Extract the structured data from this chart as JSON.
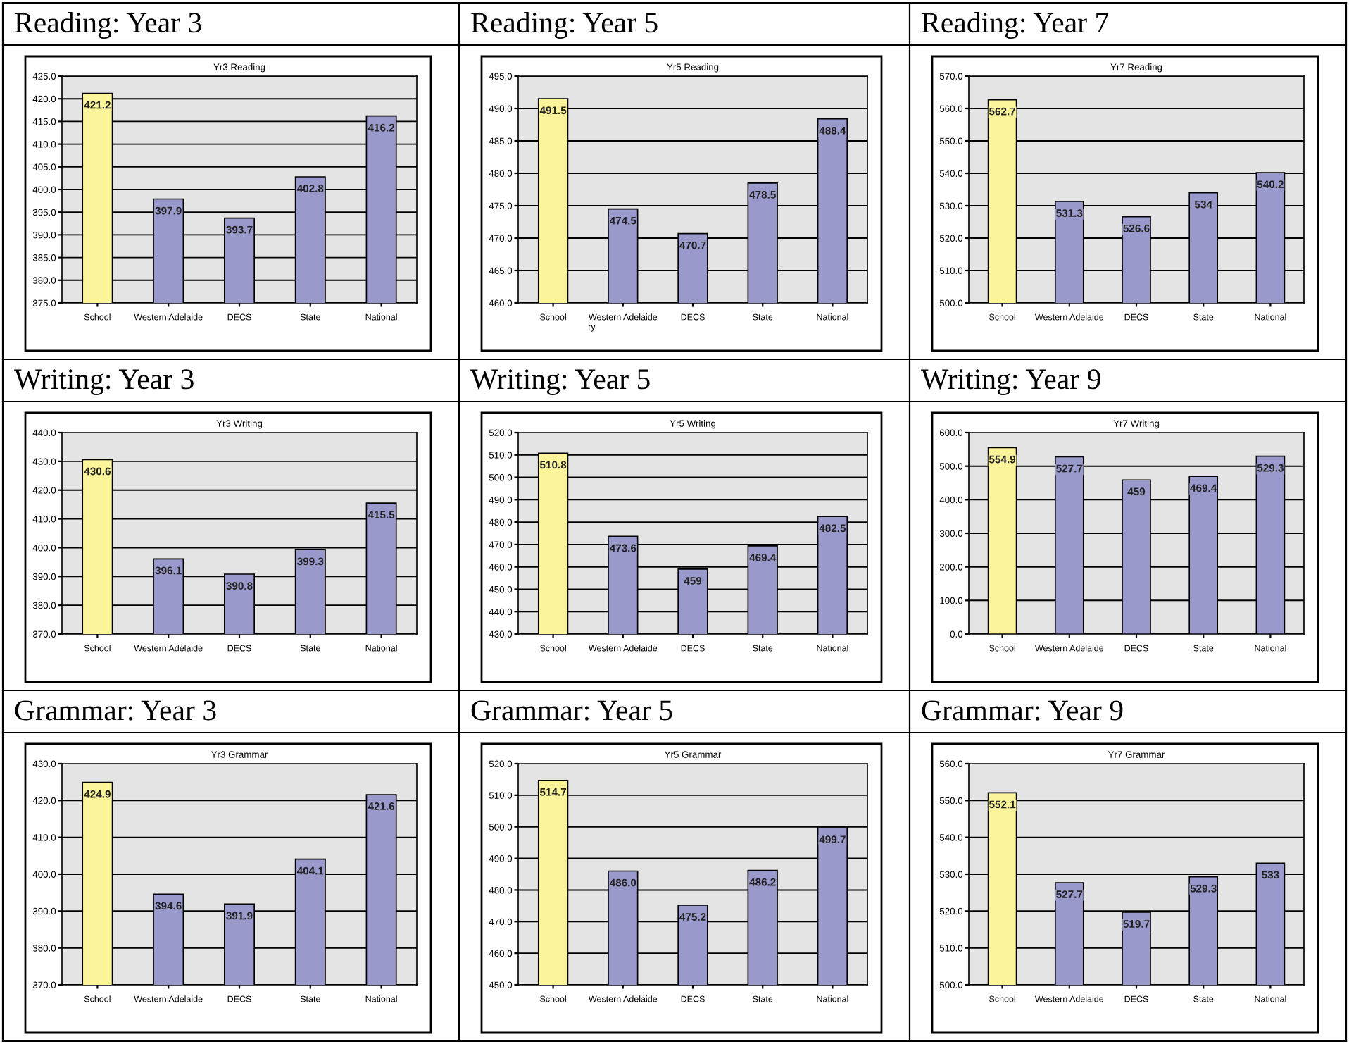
{
  "chart_data": [
    {
      "type": "bar",
      "title": "Reading: Year 3",
      "subtitle": "Yr3 Reading",
      "categories": [
        "School",
        "Western Adelaide",
        "DECS",
        "State",
        "National"
      ],
      "values": [
        421.2,
        397.9,
        393.7,
        402.8,
        416.2
      ],
      "value_labels": [
        "421.2",
        "397.9",
        "393.7",
        "402.8",
        "416.2"
      ],
      "colors": [
        "#fbf49b",
        "#9999cc",
        "#9999cc",
        "#9999cc",
        "#9999cc"
      ],
      "ylim": [
        375,
        425
      ],
      "yticks": [
        {
          "value": 375,
          "label": "375.0"
        },
        {
          "value": 380,
          "label": "380.0"
        },
        {
          "value": 385,
          "label": "385.0"
        },
        {
          "value": 390,
          "label": "390.0"
        },
        {
          "value": 395,
          "label": "395.0"
        },
        {
          "value": 400,
          "label": "400.0"
        },
        {
          "value": 405,
          "label": "405.0"
        },
        {
          "value": 410,
          "label": "410.0"
        },
        {
          "value": 415,
          "label": "415.0"
        },
        {
          "value": 420,
          "label": "420.0"
        },
        {
          "value": 425,
          "label": "425.0"
        }
      ],
      "grid": "y"
    },
    {
      "type": "bar",
      "title": "Reading: Year 5",
      "subtitle": "Yr5 Reading",
      "categories": [
        "School",
        "Western Adelaide",
        "DECS",
        "State",
        "National"
      ],
      "values": [
        491.5,
        474.5,
        470.7,
        478.5,
        488.4
      ],
      "value_labels": [
        "491.5",
        "474.5",
        "470.7",
        "478.5",
        "488.4"
      ],
      "colors": [
        "#fbf49b",
        "#9999cc",
        "#9999cc",
        "#9999cc",
        "#9999cc"
      ],
      "ylim": [
        460,
        495
      ],
      "yticks": [
        {
          "value": 460,
          "label": "460.0"
        },
        {
          "value": 465,
          "label": "465.0"
        },
        {
          "value": 470,
          "label": "470.0"
        },
        {
          "value": 475,
          "label": "475.0"
        },
        {
          "value": 480,
          "label": "480.0"
        },
        {
          "value": 485,
          "label": "485.0"
        },
        {
          "value": 490,
          "label": "490.0"
        },
        {
          "value": 495,
          "label": "495.0"
        }
      ],
      "grid": "y",
      "annotations": [
        "ry"
      ]
    },
    {
      "type": "bar",
      "title": "Reading: Year 7",
      "subtitle": "Yr7 Reading",
      "categories": [
        "School",
        "Western Adelaide",
        "DECS",
        "State",
        "National"
      ],
      "values": [
        562.7,
        531.3,
        526.6,
        534,
        540.2
      ],
      "value_labels": [
        "562.7",
        "531.3",
        "526.6",
        "534",
        "540.2"
      ],
      "colors": [
        "#fbf49b",
        "#9999cc",
        "#9999cc",
        "#9999cc",
        "#9999cc"
      ],
      "ylim": [
        500,
        570
      ],
      "yticks": [
        {
          "value": 500,
          "label": "500.0"
        },
        {
          "value": 510,
          "label": "510.0"
        },
        {
          "value": 520,
          "label": "520.0"
        },
        {
          "value": 530,
          "label": "530.0"
        },
        {
          "value": 540,
          "label": "540.0"
        },
        {
          "value": 550,
          "label": "550.0"
        },
        {
          "value": 560,
          "label": "560.0"
        },
        {
          "value": 570,
          "label": "570.0"
        }
      ],
      "grid": "y"
    },
    {
      "type": "bar",
      "title": "Writing: Year 3",
      "subtitle": "Yr3 Writing",
      "categories": [
        "School",
        "Western Adelaide",
        "DECS",
        "State",
        "National"
      ],
      "values": [
        430.6,
        396.1,
        390.8,
        399.3,
        415.5
      ],
      "value_labels": [
        "430.6",
        "396.1",
        "390.8",
        "399.3",
        "415.5"
      ],
      "colors": [
        "#fbf49b",
        "#9999cc",
        "#9999cc",
        "#9999cc",
        "#9999cc"
      ],
      "ylim": [
        370,
        440
      ],
      "yticks": [
        {
          "value": 370,
          "label": "370.0"
        },
        {
          "value": 380,
          "label": "380.0"
        },
        {
          "value": 390,
          "label": "390.0"
        },
        {
          "value": 400,
          "label": "400.0"
        },
        {
          "value": 410,
          "label": "410.0"
        },
        {
          "value": 420,
          "label": "420.0"
        },
        {
          "value": 430,
          "label": "430.0"
        },
        {
          "value": 440,
          "label": "440.0"
        }
      ],
      "grid": "y"
    },
    {
      "type": "bar",
      "title": "Writing: Year 5",
      "subtitle": "Yr5 Writing",
      "categories": [
        "School",
        "Western Adelaide",
        "DECS",
        "State",
        "National"
      ],
      "values": [
        510.8,
        473.6,
        459,
        469.4,
        482.5
      ],
      "value_labels": [
        "510.8",
        "473.6",
        "459",
        "469.4",
        "482.5"
      ],
      "colors": [
        "#fbf49b",
        "#9999cc",
        "#9999cc",
        "#9999cc",
        "#9999cc"
      ],
      "ylim": [
        430,
        520
      ],
      "yticks": [
        {
          "value": 430,
          "label": "430.0"
        },
        {
          "value": 440,
          "label": "440.0"
        },
        {
          "value": 450,
          "label": "450.0"
        },
        {
          "value": 460,
          "label": "460.0"
        },
        {
          "value": 470,
          "label": "470.0"
        },
        {
          "value": 480,
          "label": "480.0"
        },
        {
          "value": 490,
          "label": "490.0"
        },
        {
          "value": 500,
          "label": "500.0"
        },
        {
          "value": 510,
          "label": "510.0"
        },
        {
          "value": 520,
          "label": "520.0"
        }
      ],
      "grid": "y"
    },
    {
      "type": "bar",
      "title": "Writing: Year 9",
      "subtitle": "Yr7 Writing",
      "categories": [
        "School",
        "Western Adelaide",
        "DECS",
        "State",
        "National"
      ],
      "values": [
        554.9,
        527.7,
        459,
        469.4,
        529.3
      ],
      "value_labels": [
        "554.9",
        "527.7",
        "459",
        "469.4",
        "529.3"
      ],
      "colors": [
        "#fbf49b",
        "#9999cc",
        "#9999cc",
        "#9999cc",
        "#9999cc"
      ],
      "ylim": [
        0,
        600
      ],
      "yticks": [
        {
          "value": 0,
          "label": "0.0"
        },
        {
          "value": 100,
          "label": "100.0"
        },
        {
          "value": 200,
          "label": "200.0"
        },
        {
          "value": 300,
          "label": "300.0"
        },
        {
          "value": 400,
          "label": "400.0"
        },
        {
          "value": 500,
          "label": "500.0"
        },
        {
          "value": 600,
          "label": "600.0"
        }
      ],
      "grid": "y"
    },
    {
      "type": "bar",
      "title": "Grammar: Year 3",
      "subtitle": "Yr3 Grammar",
      "categories": [
        "School",
        "Western Adelaide",
        "DECS",
        "State",
        "National"
      ],
      "values": [
        424.9,
        394.6,
        391.9,
        404.1,
        421.6
      ],
      "value_labels": [
        "424.9",
        "394.6",
        "391.9",
        "404.1",
        "421.6"
      ],
      "colors": [
        "#fbf49b",
        "#9999cc",
        "#9999cc",
        "#9999cc",
        "#9999cc"
      ],
      "ylim": [
        370,
        430
      ],
      "yticks": [
        {
          "value": 370,
          "label": "370.0"
        },
        {
          "value": 380,
          "label": "380.0"
        },
        {
          "value": 390,
          "label": "390.0"
        },
        {
          "value": 400,
          "label": "400.0"
        },
        {
          "value": 410,
          "label": "410.0"
        },
        {
          "value": 420,
          "label": "420.0"
        },
        {
          "value": 430,
          "label": "430.0"
        }
      ],
      "grid": "y"
    },
    {
      "type": "bar",
      "title": "Grammar: Year 5",
      "subtitle": "Yr5 Grammar",
      "categories": [
        "School",
        "Western Adelaide",
        "DECS",
        "State",
        "National"
      ],
      "values": [
        514.7,
        486.0,
        475.2,
        486.2,
        499.7
      ],
      "value_labels": [
        "514.7",
        "486.0",
        "475.2",
        "486.2",
        "499.7"
      ],
      "colors": [
        "#fbf49b",
        "#9999cc",
        "#9999cc",
        "#9999cc",
        "#9999cc"
      ],
      "ylim": [
        450,
        520
      ],
      "yticks": [
        {
          "value": 450,
          "label": "450.0"
        },
        {
          "value": 460,
          "label": "460.0"
        },
        {
          "value": 470,
          "label": "470.0"
        },
        {
          "value": 480,
          "label": "480.0"
        },
        {
          "value": 490,
          "label": "490.0"
        },
        {
          "value": 500,
          "label": "500.0"
        },
        {
          "value": 510,
          "label": "510.0"
        },
        {
          "value": 520,
          "label": "520.0"
        }
      ],
      "grid": "y"
    },
    {
      "type": "bar",
      "title": "Grammar: Year 9",
      "subtitle": "Yr7 Grammar",
      "categories": [
        "School",
        "Western Adelaide",
        "DECS",
        "State",
        "National"
      ],
      "values": [
        552.1,
        527.7,
        519.7,
        529.3,
        533
      ],
      "value_labels": [
        "552.1",
        "527.7",
        "519.7",
        "529.3",
        "533"
      ],
      "colors": [
        "#fbf49b",
        "#9999cc",
        "#9999cc",
        "#9999cc",
        "#9999cc"
      ],
      "ylim": [
        500,
        560
      ],
      "yticks": [
        {
          "value": 500,
          "label": "500.0"
        },
        {
          "value": 510,
          "label": "510.0"
        },
        {
          "value": 520,
          "label": "520.0"
        },
        {
          "value": 530,
          "label": "530.0"
        },
        {
          "value": 540,
          "label": "540.0"
        },
        {
          "value": 550,
          "label": "550.0"
        },
        {
          "value": 560,
          "label": "560.0"
        }
      ],
      "grid": "y"
    }
  ]
}
